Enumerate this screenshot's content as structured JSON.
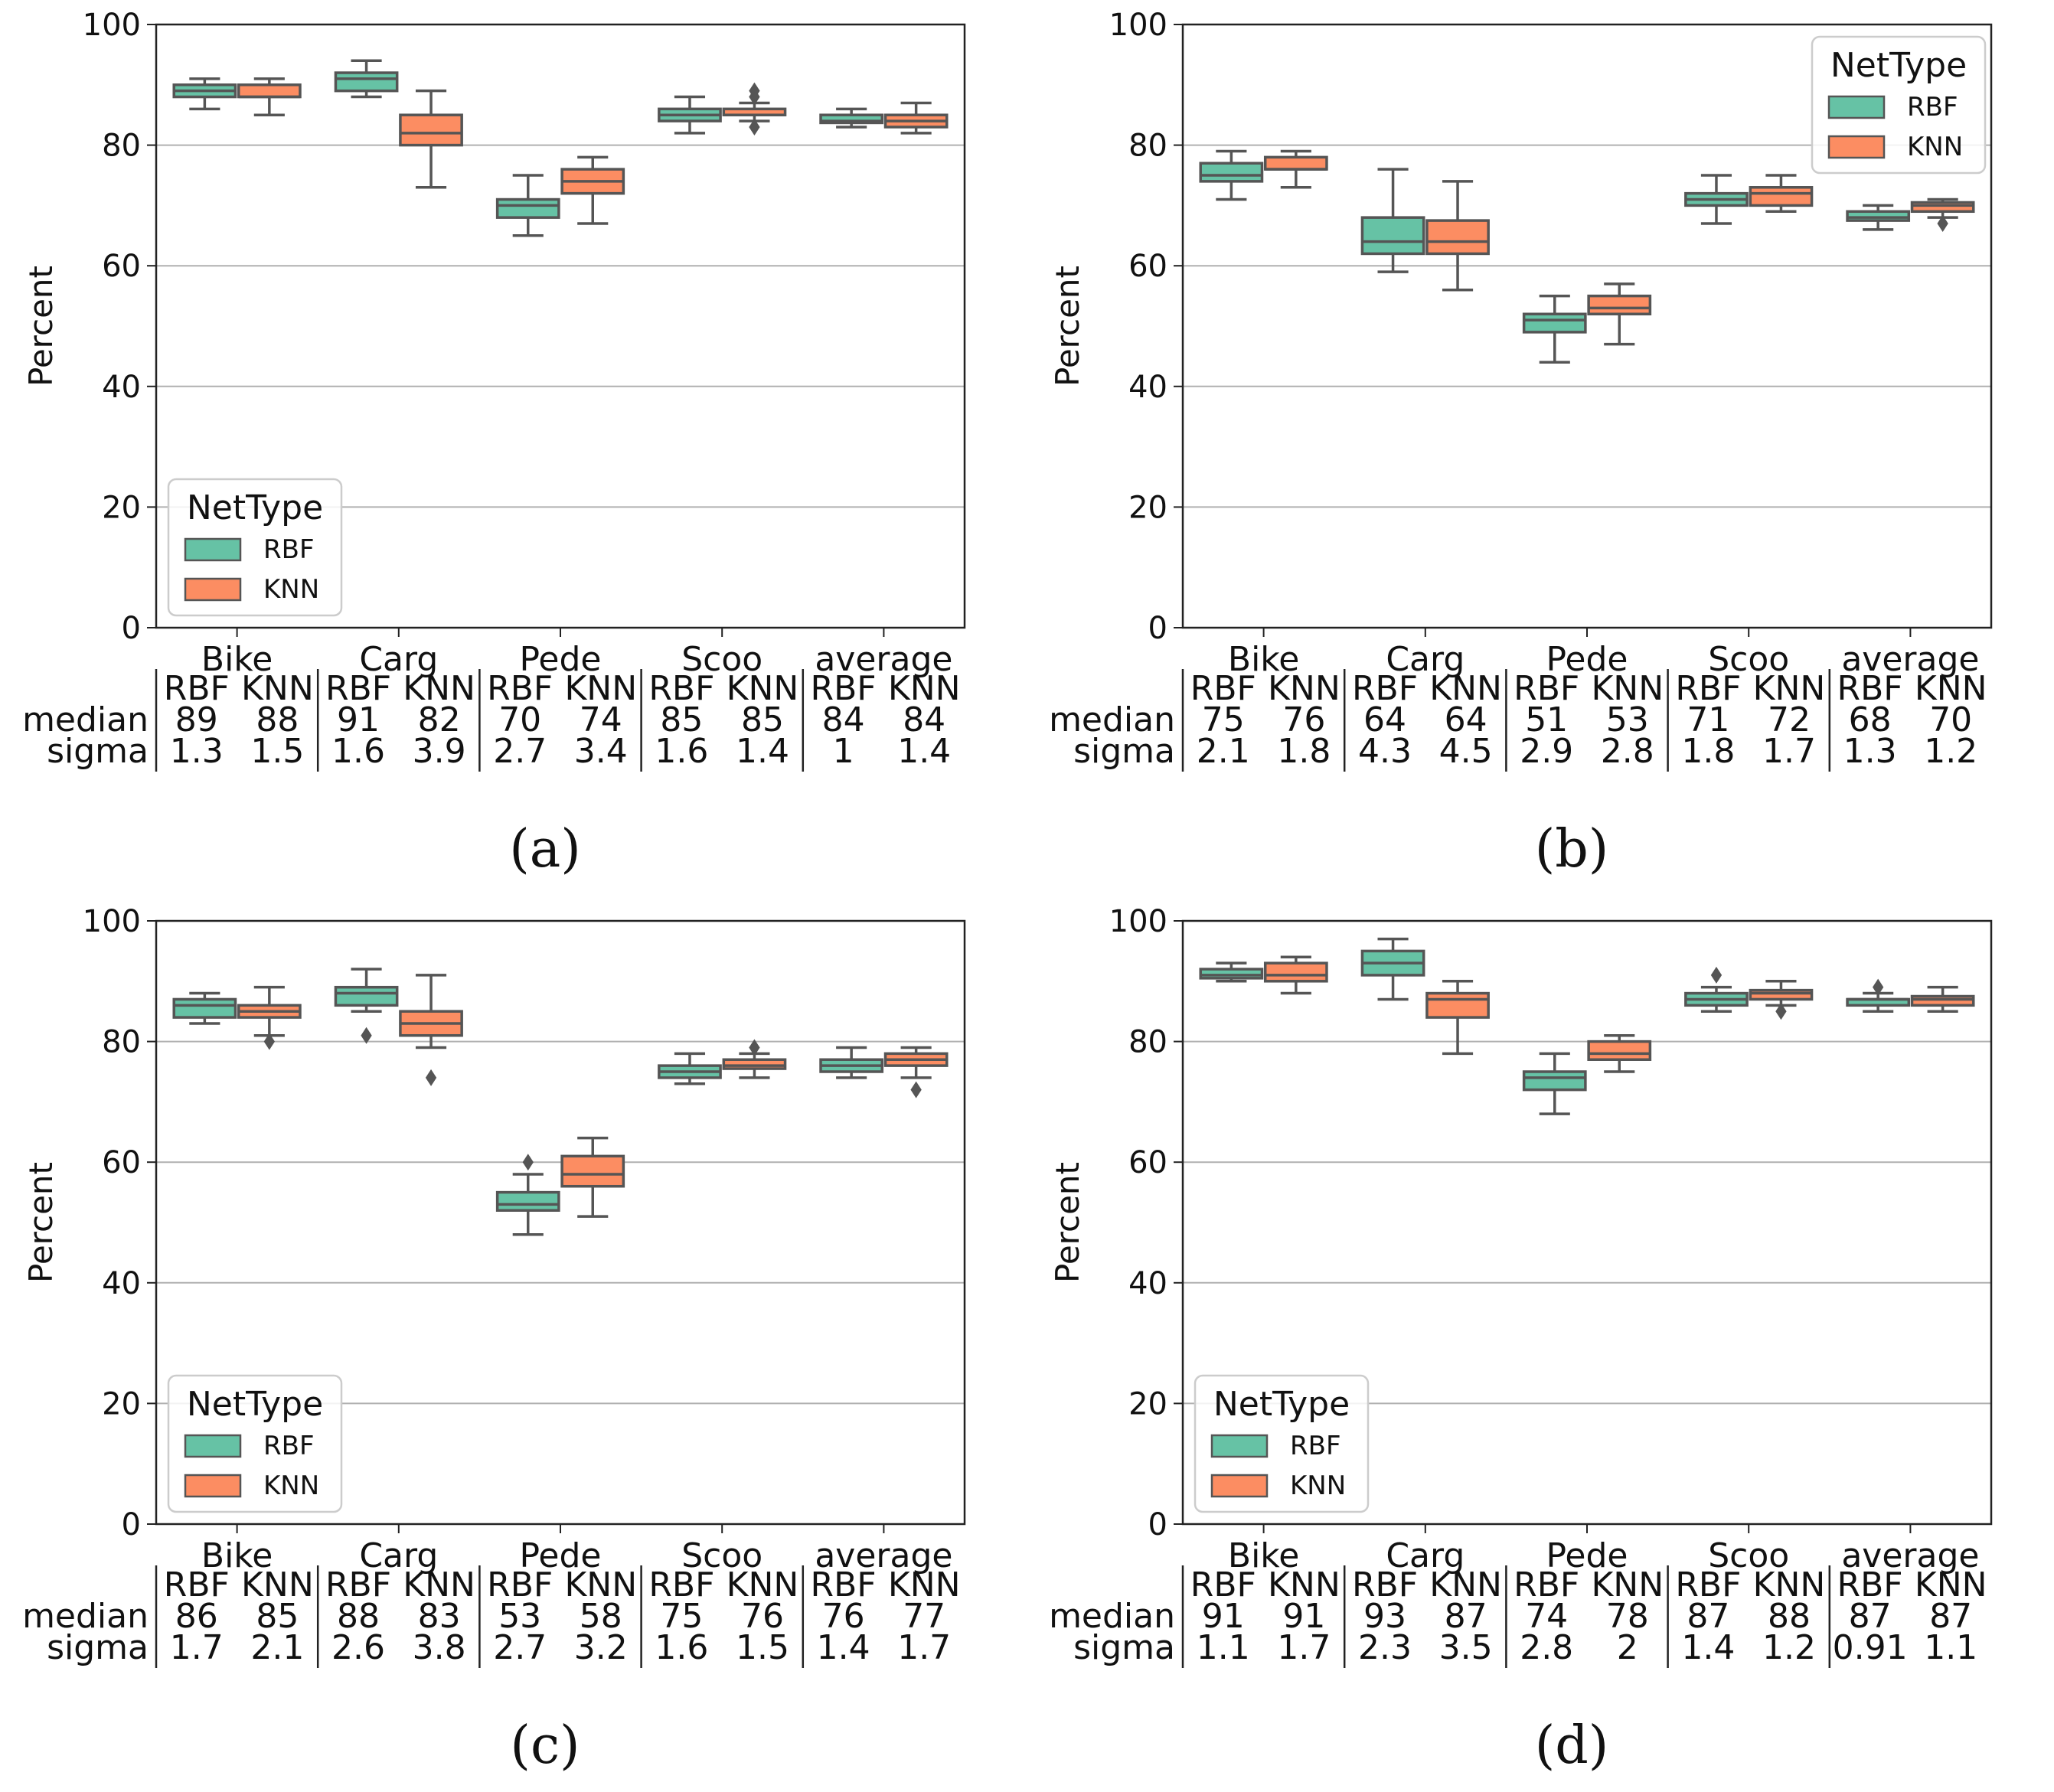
{
  "colors": {
    "rbf_fill": "#66c2a5",
    "knn_fill": "#fc8d62",
    "box_stroke": "#555555",
    "grid": "#b0b0b0",
    "axis": "#222222"
  },
  "legend_title": "NetType",
  "row_labels": {
    "median": "median",
    "sigma": "sigma"
  },
  "chart_data": [
    {
      "panel_label": "(a)",
      "type": "box",
      "title": "",
      "xlabel": "",
      "ylabel": "Percent",
      "ylim": [
        0,
        100
      ],
      "yticks": [
        0,
        20,
        40,
        60,
        80,
        100
      ],
      "grid": "y",
      "legend_position": "lower-left",
      "categories": [
        "Bike",
        "Carg",
        "Pede",
        "Scoo",
        "average"
      ],
      "series": [
        {
          "name": "RBF",
          "color": "#66c2a5",
          "boxes": [
            {
              "min": 86,
              "q1": 88,
              "median": 89,
              "q3": 90,
              "max": 91,
              "outliers": []
            },
            {
              "min": 88,
              "q1": 89,
              "median": 91,
              "q3": 92,
              "max": 94,
              "outliers": []
            },
            {
              "min": 65,
              "q1": 68,
              "median": 70,
              "q3": 71,
              "max": 75,
              "outliers": []
            },
            {
              "min": 82,
              "q1": 84,
              "median": 85,
              "q3": 86,
              "max": 88,
              "outliers": []
            },
            {
              "min": 83,
              "q1": 83.7,
              "median": 84,
              "q3": 85,
              "max": 86,
              "outliers": []
            }
          ]
        },
        {
          "name": "KNN",
          "color": "#fc8d62",
          "boxes": [
            {
              "min": 85,
              "q1": 88,
              "median": 88,
              "q3": 90,
              "max": 91,
              "outliers": []
            },
            {
              "min": 73,
              "q1": 80,
              "median": 82,
              "q3": 85,
              "max": 89,
              "outliers": []
            },
            {
              "min": 67,
              "q1": 72,
              "median": 74,
              "q3": 76,
              "max": 78,
              "outliers": []
            },
            {
              "min": 84,
              "q1": 85,
              "median": 85,
              "q3": 86,
              "max": 87,
              "outliers": [
                83,
                88,
                89
              ]
            },
            {
              "min": 82,
              "q1": 83,
              "median": 84,
              "q3": 85,
              "max": 87,
              "outliers": []
            }
          ]
        }
      ],
      "table": {
        "headers": [
          "RBF",
          "KNN"
        ],
        "median": [
          [
            "89",
            "88"
          ],
          [
            "91",
            "82"
          ],
          [
            "70",
            "74"
          ],
          [
            "85",
            "85"
          ],
          [
            "84",
            "84"
          ]
        ],
        "sigma": [
          [
            "1.3",
            "1.5"
          ],
          [
            "1.6",
            "3.9"
          ],
          [
            "2.7",
            "3.4"
          ],
          [
            "1.6",
            "1.4"
          ],
          [
            "1",
            "1.4"
          ]
        ]
      }
    },
    {
      "panel_label": "(b)",
      "type": "box",
      "title": "",
      "xlabel": "",
      "ylabel": "Percent",
      "ylim": [
        0,
        100
      ],
      "yticks": [
        0,
        20,
        40,
        60,
        80,
        100
      ],
      "grid": "y",
      "legend_position": "upper-right",
      "categories": [
        "Bike",
        "Carg",
        "Pede",
        "Scoo",
        "average"
      ],
      "series": [
        {
          "name": "RBF",
          "color": "#66c2a5",
          "boxes": [
            {
              "min": 71,
              "q1": 74,
              "median": 75,
              "q3": 77,
              "max": 79,
              "outliers": []
            },
            {
              "min": 59,
              "q1": 62,
              "median": 64,
              "q3": 68,
              "max": 76,
              "outliers": []
            },
            {
              "min": 44,
              "q1": 49,
              "median": 51,
              "q3": 52,
              "max": 55,
              "outliers": []
            },
            {
              "min": 67,
              "q1": 70,
              "median": 71,
              "q3": 72,
              "max": 75,
              "outliers": []
            },
            {
              "min": 66,
              "q1": 67.5,
              "median": 68,
              "q3": 69,
              "max": 70,
              "outliers": []
            }
          ]
        },
        {
          "name": "KNN",
          "color": "#fc8d62",
          "boxes": [
            {
              "min": 73,
              "q1": 76,
              "median": 76,
              "q3": 78,
              "max": 79,
              "outliers": []
            },
            {
              "min": 56,
              "q1": 62,
              "median": 64,
              "q3": 67.5,
              "max": 74,
              "outliers": []
            },
            {
              "min": 47,
              "q1": 52,
              "median": 53,
              "q3": 55,
              "max": 57,
              "outliers": []
            },
            {
              "min": 69,
              "q1": 70,
              "median": 72,
              "q3": 73,
              "max": 75,
              "outliers": []
            },
            {
              "min": 68,
              "q1": 69,
              "median": 70,
              "q3": 70.5,
              "max": 71,
              "outliers": [
                67
              ]
            }
          ]
        }
      ],
      "table": {
        "headers": [
          "RBF",
          "KNN"
        ],
        "median": [
          [
            "75",
            "76"
          ],
          [
            "64",
            "64"
          ],
          [
            "51",
            "53"
          ],
          [
            "71",
            "72"
          ],
          [
            "68",
            "70"
          ]
        ],
        "sigma": [
          [
            "2.1",
            "1.8"
          ],
          [
            "4.3",
            "4.5"
          ],
          [
            "2.9",
            "2.8"
          ],
          [
            "1.8",
            "1.7"
          ],
          [
            "1.3",
            "1.2"
          ]
        ]
      }
    },
    {
      "panel_label": "(c)",
      "type": "box",
      "title": "",
      "xlabel": "",
      "ylabel": "Percent",
      "ylim": [
        0,
        100
      ],
      "yticks": [
        0,
        20,
        40,
        60,
        80,
        100
      ],
      "grid": "y",
      "legend_position": "lower-left",
      "categories": [
        "Bike",
        "Carg",
        "Pede",
        "Scoo",
        "average"
      ],
      "series": [
        {
          "name": "RBF",
          "color": "#66c2a5",
          "boxes": [
            {
              "min": 83,
              "q1": 84,
              "median": 86,
              "q3": 87,
              "max": 88,
              "outliers": []
            },
            {
              "min": 85,
              "q1": 86,
              "median": 88,
              "q3": 89,
              "max": 92,
              "outliers": [
                81
              ]
            },
            {
              "min": 48,
              "q1": 52,
              "median": 53,
              "q3": 55,
              "max": 58,
              "outliers": [
                60
              ]
            },
            {
              "min": 73,
              "q1": 74,
              "median": 75,
              "q3": 76,
              "max": 78,
              "outliers": []
            },
            {
              "min": 74,
              "q1": 75,
              "median": 76,
              "q3": 77,
              "max": 79,
              "outliers": []
            }
          ]
        },
        {
          "name": "KNN",
          "color": "#fc8d62",
          "boxes": [
            {
              "min": 81,
              "q1": 84,
              "median": 85,
              "q3": 86,
              "max": 89,
              "outliers": [
                80
              ]
            },
            {
              "min": 79,
              "q1": 81,
              "median": 83,
              "q3": 85,
              "max": 91,
              "outliers": [
                74
              ]
            },
            {
              "min": 51,
              "q1": 56,
              "median": 58,
              "q3": 61,
              "max": 64,
              "outliers": []
            },
            {
              "min": 74,
              "q1": 75.5,
              "median": 76,
              "q3": 77,
              "max": 78,
              "outliers": [
                79
              ]
            },
            {
              "min": 74,
              "q1": 76,
              "median": 77,
              "q3": 78,
              "max": 79,
              "outliers": [
                72
              ]
            }
          ]
        }
      ],
      "table": {
        "headers": [
          "RBF",
          "KNN"
        ],
        "median": [
          [
            "86",
            "85"
          ],
          [
            "88",
            "83"
          ],
          [
            "53",
            "58"
          ],
          [
            "75",
            "76"
          ],
          [
            "76",
            "77"
          ]
        ],
        "sigma": [
          [
            "1.7",
            "2.1"
          ],
          [
            "2.6",
            "3.8"
          ],
          [
            "2.7",
            "3.2"
          ],
          [
            "1.6",
            "1.5"
          ],
          [
            "1.4",
            "1.7"
          ]
        ]
      }
    },
    {
      "panel_label": "(d)",
      "type": "box",
      "title": "",
      "xlabel": "",
      "ylabel": "Percent",
      "ylim": [
        0,
        100
      ],
      "yticks": [
        0,
        20,
        40,
        60,
        80,
        100
      ],
      "grid": "y",
      "legend_position": "lower-left",
      "categories": [
        "Bike",
        "Carg",
        "Pede",
        "Scoo",
        "average"
      ],
      "series": [
        {
          "name": "RBF",
          "color": "#66c2a5",
          "boxes": [
            {
              "min": 90,
              "q1": 90.5,
              "median": 91,
              "q3": 92,
              "max": 93,
              "outliers": []
            },
            {
              "min": 87,
              "q1": 91,
              "median": 93,
              "q3": 95,
              "max": 97,
              "outliers": []
            },
            {
              "min": 68,
              "q1": 72,
              "median": 74,
              "q3": 75,
              "max": 78,
              "outliers": []
            },
            {
              "min": 85,
              "q1": 86,
              "median": 87,
              "q3": 88,
              "max": 89,
              "outliers": [
                91
              ]
            },
            {
              "min": 85,
              "q1": 86,
              "median": 87,
              "q3": 87,
              "max": 88,
              "outliers": [
                89
              ]
            }
          ]
        },
        {
          "name": "KNN",
          "color": "#fc8d62",
          "boxes": [
            {
              "min": 88,
              "q1": 90,
              "median": 91,
              "q3": 93,
              "max": 94,
              "outliers": []
            },
            {
              "min": 78,
              "q1": 84,
              "median": 87,
              "q3": 88,
              "max": 90,
              "outliers": []
            },
            {
              "min": 75,
              "q1": 77,
              "median": 78,
              "q3": 80,
              "max": 81,
              "outliers": []
            },
            {
              "min": 86,
              "q1": 87,
              "median": 88,
              "q3": 88.5,
              "max": 90,
              "outliers": [
                85
              ]
            },
            {
              "min": 85,
              "q1": 86,
              "median": 87,
              "q3": 87.5,
              "max": 89,
              "outliers": []
            }
          ]
        }
      ],
      "table": {
        "headers": [
          "RBF",
          "KNN"
        ],
        "median": [
          [
            "91",
            "91"
          ],
          [
            "93",
            "87"
          ],
          [
            "74",
            "78"
          ],
          [
            "87",
            "88"
          ],
          [
            "87",
            "87"
          ]
        ],
        "sigma": [
          [
            "1.1",
            "1.7"
          ],
          [
            "2.3",
            "3.5"
          ],
          [
            "2.8",
            "2"
          ],
          [
            "1.4",
            "1.2"
          ],
          [
            "0.91",
            "1.1"
          ]
        ]
      }
    }
  ]
}
